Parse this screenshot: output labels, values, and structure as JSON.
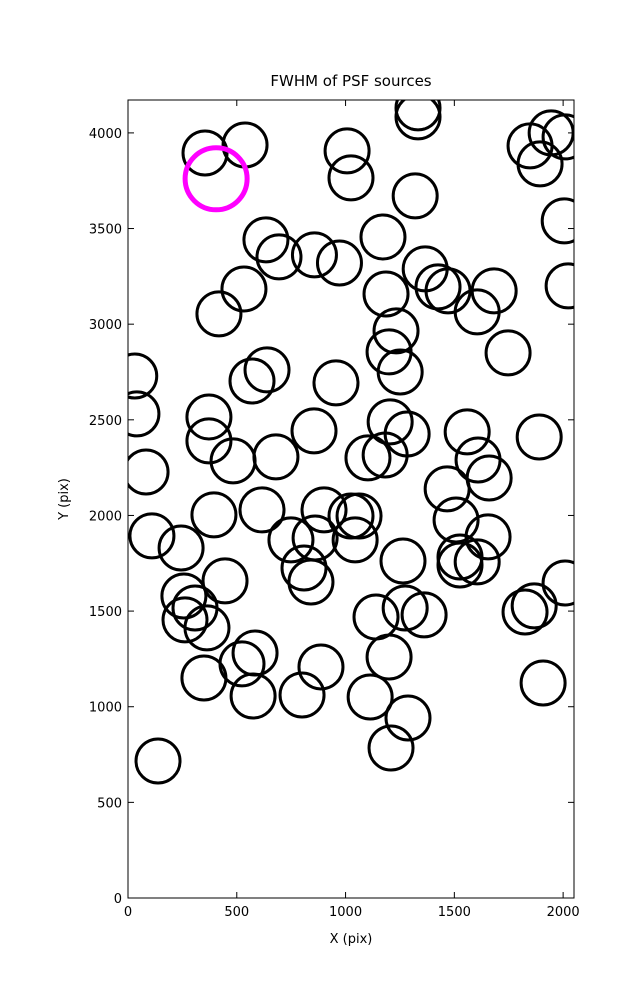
{
  "chart_data": {
    "type": "scatter",
    "title": "FWHM of PSF sources",
    "x_label": "X (pix)",
    "y_label": "Y (pix)",
    "xlim": [
      0,
      2050
    ],
    "ylim": [
      0,
      4172
    ],
    "xticks": [
      0,
      500,
      1000,
      1500,
      2000
    ],
    "yticks": [
      0,
      500,
      1000,
      1500,
      2000,
      2500,
      3000,
      3500,
      4000
    ],
    "grid": false,
    "series": [
      {
        "color": "#000000",
        "x": [
          354,
          538,
          1333,
          1333,
          1007,
          1025,
          1320,
          1848,
          1945,
          2009,
          1894,
          2005,
          2023,
          634,
          694,
          857,
          972,
          1172,
          533,
          418,
          1366,
          1425,
          1471,
          1683,
          1605,
          1186,
          1232,
          1200,
          1251,
          1747,
          639,
          570,
          956,
          31,
          41,
          372,
          372,
          483,
          680,
          855,
          1205,
          1283,
          1182,
          1103,
          1559,
          1609,
          1660,
          1890,
          83,
          1467,
          395,
          616,
          901,
          749,
          860,
          1025,
          1062,
          1044,
          1508,
          1655,
          110,
          244,
          809,
          841,
          1264,
          1526,
          1526,
          1605,
          446,
          257,
          308,
          262,
          363,
          2009,
          1825,
          1867,
          1140,
          1274,
          1361,
          584,
          524,
          887,
          1200,
          349,
          575,
          800,
          1113,
          1908,
          1287,
          1209,
          138
        ],
        "values": [
          3895,
          3937,
          4131,
          4084,
          3906,
          3765,
          3671,
          3932,
          4000,
          3979,
          3838,
          3540,
          3200,
          3441,
          3352,
          3362,
          3320,
          3456,
          3184,
          3054,
          3289,
          3195,
          3174,
          3174,
          3064,
          3158,
          2965,
          2855,
          2750,
          2850,
          2761,
          2703,
          2693,
          2729,
          2531,
          2515,
          2390,
          2285,
          2306,
          2442,
          2489,
          2426,
          2316,
          2301,
          2437,
          2290,
          2196,
          2410,
          2227,
          2139,
          2003,
          2029,
          2029,
          1872,
          1882,
          1997,
          1997,
          1872,
          1976,
          1888,
          1893,
          1830,
          1725,
          1652,
          1762,
          1783,
          1741,
          1757,
          1658,
          1579,
          1516,
          1454,
          1412,
          1647,
          1495,
          1527,
          1469,
          1516,
          1480,
          1281,
          1224,
          1208,
          1260,
          1150,
          1056,
          1061,
          1051,
          1124,
          941,
          784,
          716
        ]
      },
      {
        "color": "#ff00ff",
        "x": [
          405
        ],
        "values": [
          3760
        ]
      }
    ]
  }
}
